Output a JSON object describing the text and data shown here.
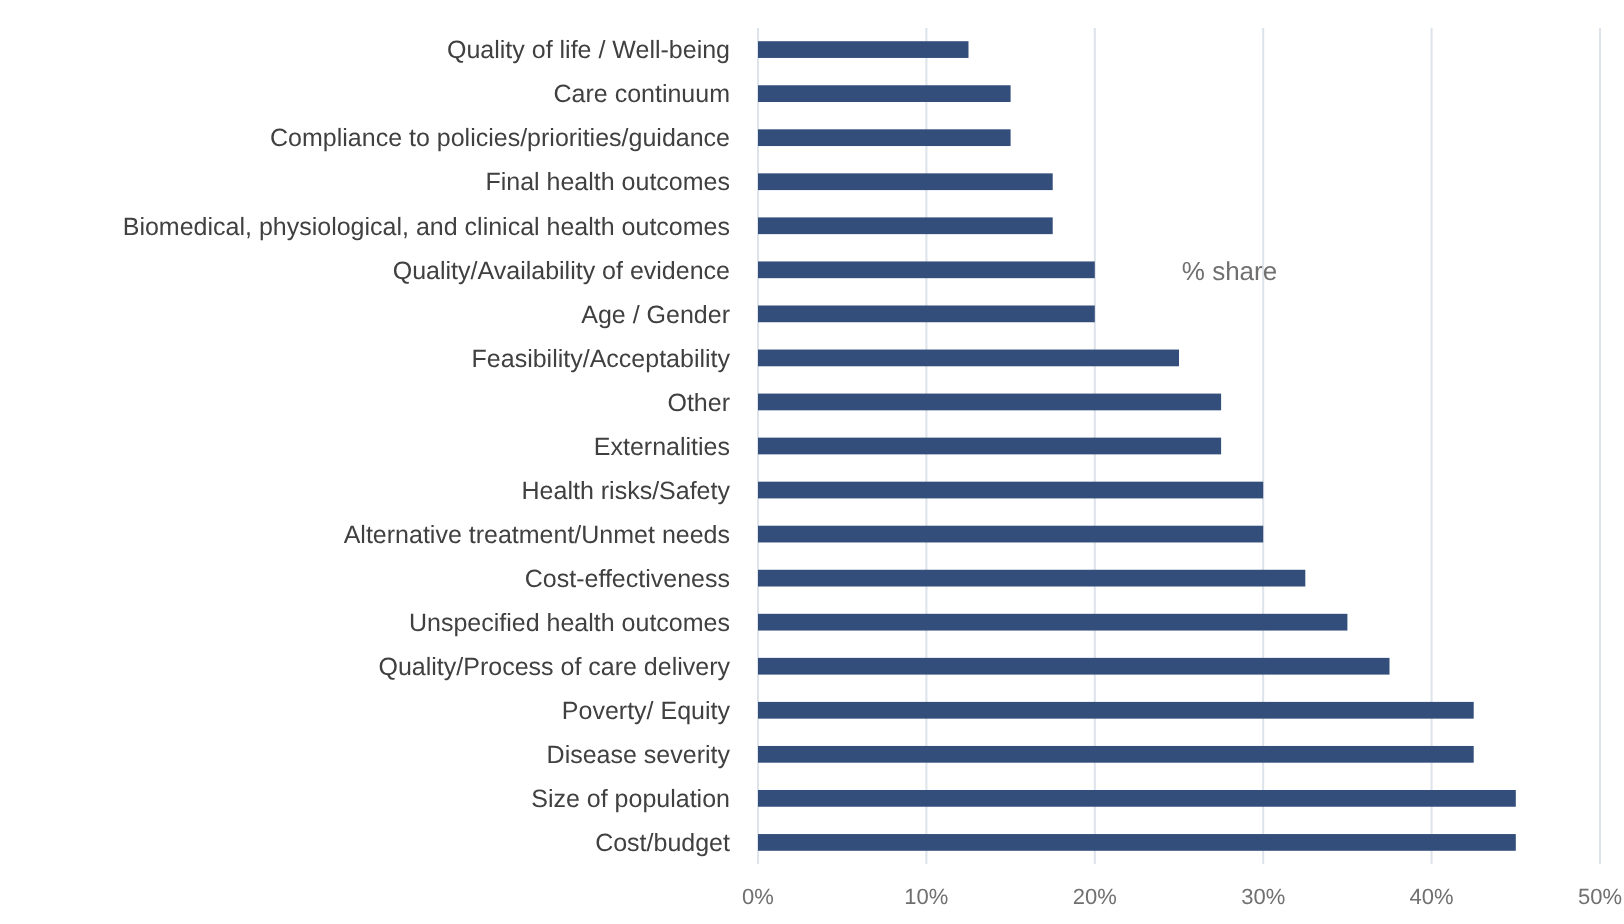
{
  "chart_data": {
    "type": "bar",
    "orientation": "horizontal",
    "categories": [
      "Quality of life / Well-being",
      "Care continuum",
      "Compliance to policies/priorities/guidance",
      "Final health outcomes",
      "Biomedical, physiological, and clinical health outcomes",
      "Quality/Availability of evidence",
      "Age / Gender",
      "Feasibility/Acceptability",
      "Other",
      "Externalities",
      "Health risks/Safety",
      "Alternative treatment/Unmet needs",
      "Cost-effectiveness",
      "Unspecified health outcomes",
      "Quality/Process of care delivery",
      "Poverty/ Equity",
      "Disease severity",
      "Size of population",
      "Cost/budget"
    ],
    "values": [
      12.5,
      15,
      15,
      17.5,
      17.5,
      20,
      20,
      25,
      27.5,
      27.5,
      30,
      30,
      32.5,
      35,
      37.5,
      42.5,
      42.5,
      45,
      45
    ],
    "color": "#344e7c",
    "xlim": [
      0,
      50
    ],
    "xticks": [
      {
        "value": 0,
        "label": "0%"
      },
      {
        "value": 10,
        "label": "10%"
      },
      {
        "value": 20,
        "label": "20%"
      },
      {
        "value": 30,
        "label": "30%"
      },
      {
        "value": 40,
        "label": "40%"
      },
      {
        "value": 50,
        "label": "50%"
      }
    ],
    "grid": "x",
    "annotations": [
      "% share"
    ]
  }
}
